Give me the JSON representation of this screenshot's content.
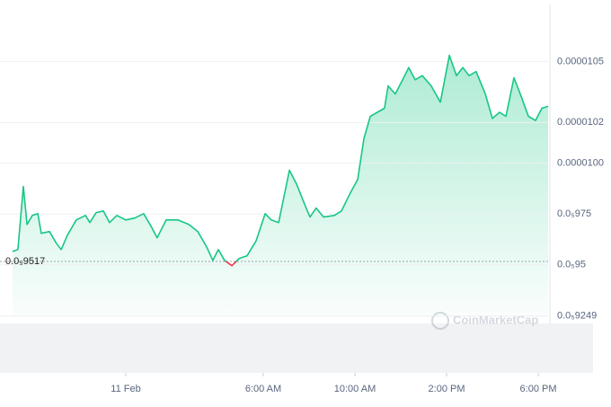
{
  "chart_data": {
    "type": "area",
    "x": [
      -4.94,
      -4.71,
      -4.47,
      -4.31,
      -4.08,
      -3.84,
      -3.69,
      -3.33,
      -3.06,
      -2.82,
      -2.55,
      -2.16,
      -1.76,
      -1.57,
      -1.29,
      -0.98,
      -0.71,
      -0.39,
      0,
      0.39,
      0.78,
      1.1,
      1.37,
      1.76,
      2.27,
      2.75,
      3.14,
      3.53,
      3.8,
      4.04,
      4.31,
      4.63,
      4.94,
      5.29,
      5.69,
      6.08,
      6.35,
      6.67,
      7.14,
      7.45,
      7.84,
      8.04,
      8.31,
      8.63,
      9.1,
      9.41,
      9.8,
      10.12,
      10.39,
      10.67,
      10.98,
      11.29,
      11.45,
      11.76,
      12.08,
      12.35,
      12.63,
      12.94,
      13.33,
      13.73,
      14.12,
      14.43,
      14.71,
      14.98,
      15.29,
      15.69,
      16,
      16.31,
      16.59,
      16.94,
      17.25,
      17.57,
      17.88,
      18.16,
      18.43
    ],
    "series": [
      {
        "color": "#16c784",
        "values": [
          9.566e-06,
          9.575e-06,
          9.885e-06,
          9.699e-06,
          9.743e-06,
          9.752e-06,
          9.655e-06,
          9.664e-06,
          9.611e-06,
          9.575e-06,
          9.646e-06,
          9.721e-06,
          9.743e-06,
          9.708e-06,
          9.757e-06,
          9.765e-06,
          9.708e-06,
          9.743e-06,
          9.721e-06,
          9.73e-06,
          9.752e-06,
          9.69e-06,
          9.633e-06,
          9.721e-06,
          9.721e-06,
          9.699e-06,
          9.664e-06,
          9.588e-06,
          9.522e-06,
          9.575e-06,
          9.522e-06,
          9.496e-06,
          9.531e-06,
          9.544e-06,
          9.619e-06,
          9.752e-06,
          9.721e-06,
          9.708e-06,
          9.965e-06,
          9.898e-06,
          9.788e-06,
          9.735e-06,
          9.779e-06,
          9.735e-06,
          9.743e-06,
          9.765e-06,
          9.854e-06,
          9.92e-06,
          1.012e-05,
          1.023e-05,
          1.025e-05,
          1.027e-05,
          1.038e-05,
          1.034e-05,
          1.041e-05,
          1.047e-05,
          1.041e-05,
          1.043e-05,
          1.038e-05,
          1.03e-05,
          1.053e-05,
          1.043e-05,
          1.047e-05,
          1.043e-05,
          1.045e-05,
          1.034e-05,
          1.022e-05,
          1.025e-05,
          1.023e-05,
          1.042e-05,
          1.033e-05,
          1.023e-05,
          1.021e-05,
          1.027e-05,
          1.028e-05
        ]
      }
    ],
    "down_color": "#ea3943",
    "xlim": [
      -5.49,
      18.43
    ],
    "xticks": [
      {
        "value": 0,
        "label": "11 Feb"
      },
      {
        "value": 6,
        "label": "6:00 AM"
      },
      {
        "value": 10,
        "label": "10:00 AM"
      },
      {
        "value": 14,
        "label": "2:00 PM"
      },
      {
        "value": 18,
        "label": "6:00 PM"
      }
    ],
    "ylim": [
      9.243e-06,
      1.078e-05
    ],
    "yticks": [
      {
        "value": 1.05e-05,
        "label": "0.0000105"
      },
      {
        "value": 1.02e-05,
        "label": "0.0000102"
      },
      {
        "value": 1e-05,
        "label": "0.0000100"
      },
      {
        "value": 9.75e-06,
        "label": "0.0₅975"
      },
      {
        "value": 9.5e-06,
        "label": "0.0₅95"
      },
      {
        "value": 9.249e-06,
        "label": "0.0₅9249"
      }
    ],
    "baseline": {
      "value": 9.517e-06,
      "label": "0.0₅9517"
    },
    "watermark": "CoinMarketCap",
    "grid": true
  }
}
